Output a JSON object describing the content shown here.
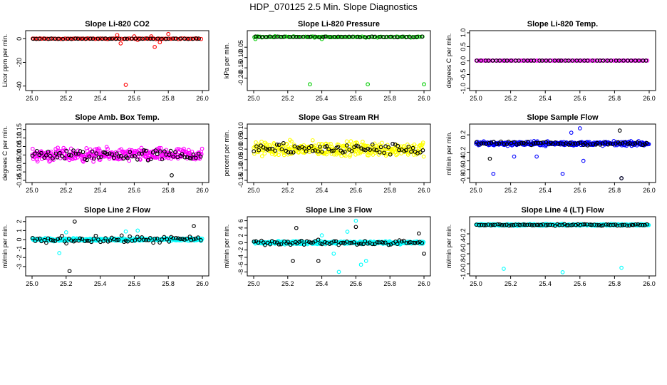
{
  "suptitle": "HDP_070125  2.5 Min. Slope Diagnostics",
  "colors": {
    "red": "#ff0000",
    "green": "#00cc00",
    "magenta": "#ff00ff",
    "yellow": "#ffff00",
    "blue": "#0000ff",
    "cyan": "#00ffff",
    "black": "#000000"
  },
  "chart_data": [
    {
      "type": "scatter",
      "title": "Slope Li-820 CO2",
      "ylabel": "Licor ppm per min.",
      "xlim": [
        25.0,
        26.0
      ],
      "xticks": [
        "25.0",
        "25.2",
        "25.4",
        "25.6",
        "25.8",
        "26.0"
      ],
      "ylim": [
        -42,
        5
      ],
      "yticks": [
        0,
        -20,
        -40
      ],
      "yticklabels": [
        "0",
        "-20",
        "-40"
      ],
      "series": [
        {
          "name": "all",
          "color": "red",
          "base": 0,
          "spread": 0.4,
          "count": 90,
          "outliers": [
            [
              25.55,
              -39
            ],
            [
              25.5,
              3
            ],
            [
              25.52,
              -4
            ],
            [
              25.6,
              2
            ],
            [
              25.7,
              2
            ],
            [
              25.72,
              -7
            ],
            [
              25.75,
              -3
            ],
            [
              25.8,
              4
            ],
            [
              25.62,
              -1
            ]
          ]
        },
        {
          "name": "line",
          "color": "black",
          "base": 0,
          "spread": 0.3,
          "count": 45,
          "outliers": []
        }
      ]
    },
    {
      "type": "scatter",
      "title": "Slope Li-820 Pressure",
      "ylabel": "kPa per min.",
      "xlim": [
        25.0,
        26.0
      ],
      "xticks": [
        "25.0",
        "25.2",
        "25.4",
        "25.6",
        "25.8",
        "26.0"
      ],
      "ylim": [
        -0.25,
        0.02
      ],
      "yticks": [
        -0.05,
        -0.1,
        -0.15,
        -0.2
      ],
      "yticklabels": [
        "-0.05",
        "-0.10",
        "-0.15",
        "-0.20"
      ],
      "series": [
        {
          "name": "all",
          "color": "green",
          "base": 0.0,
          "spread": 0.004,
          "count": 90,
          "outliers": [
            [
              25.33,
              -0.23
            ],
            [
              25.67,
              -0.23
            ],
            [
              26.0,
              -0.23
            ],
            [
              25.01,
              -0.01
            ],
            [
              25.4,
              -0.01
            ]
          ]
        },
        {
          "name": "line",
          "color": "black",
          "base": 0.0,
          "spread": 0.003,
          "count": 45,
          "outliers": []
        }
      ]
    },
    {
      "type": "scatter",
      "title": "Slope Li-820 Temp.",
      "ylabel": "degrees C per min.",
      "xlim": [
        25.0,
        26.0
      ],
      "xticks": [
        "25.0",
        "25.2",
        "25.4",
        "25.6",
        "25.8",
        "26.0"
      ],
      "ylim": [
        -1.0,
        1.0
      ],
      "yticks": [
        1.0,
        0.5,
        0.0,
        -0.5,
        -1.0
      ],
      "yticklabels": [
        "1.0",
        "0.5",
        "0.0",
        "-0.5",
        "-1.0"
      ],
      "series": [
        {
          "name": "all",
          "color": "magenta",
          "base": 0.0,
          "spread": 0.0,
          "count": 90,
          "outliers": []
        },
        {
          "name": "line",
          "color": "black",
          "base": 0.0,
          "spread": 0.0,
          "count": 45,
          "outliers": []
        }
      ]
    },
    {
      "type": "scatter",
      "title": "Slope Amb. Box Temp.",
      "ylabel": "degrees C per min.",
      "xlim": [
        25.0,
        26.0
      ],
      "xticks": [
        "25.0",
        "25.2",
        "25.4",
        "25.6",
        "25.8",
        "26.0"
      ],
      "ylim": [
        -0.15,
        0.17
      ],
      "yticks": [
        0.15,
        0.1,
        0.05,
        0.0,
        -0.05,
        -0.1,
        -0.15
      ],
      "yticklabels": [
        "0.15",
        "0.10",
        "0.05",
        "0.00",
        "-0.05",
        "-0.10",
        "-0.15"
      ],
      "series": [
        {
          "name": "all",
          "color": "magenta",
          "base": 0.0,
          "spread": 0.055,
          "count": 320,
          "outliers": []
        },
        {
          "name": "line",
          "color": "black",
          "base": 0.0,
          "spread": 0.05,
          "count": 75,
          "outliers": [
            [
              25.82,
              -0.12
            ]
          ]
        }
      ]
    },
    {
      "type": "scatter",
      "title": "Slope Gas Stream RH",
      "ylabel": "percent per min.",
      "xlim": [
        25.0,
        26.0
      ],
      "xticks": [
        "25.0",
        "25.2",
        "25.4",
        "25.6",
        "25.8",
        "26.0"
      ],
      "ylim": [
        -0.15,
        0.11
      ],
      "yticks": [
        0.1,
        0.05,
        0.0,
        -0.05,
        -0.1,
        -0.15
      ],
      "yticklabels": [
        "0.10",
        "0.05",
        "0.00",
        "-0.05",
        "-0.10",
        "-0.15"
      ],
      "series": [
        {
          "name": "all",
          "color": "yellow",
          "base": 0.0,
          "spread": 0.05,
          "count": 330,
          "outliers": []
        },
        {
          "name": "line",
          "color": "black",
          "base": 0.0,
          "spread": 0.04,
          "count": 75,
          "outliers": []
        }
      ]
    },
    {
      "type": "scatter",
      "title": "Slope Sample Flow",
      "ylabel": "ml/min per min.",
      "xlim": [
        25.0,
        26.0
      ],
      "xticks": [
        "25.0",
        "25.2",
        "25.4",
        "25.6",
        "25.8",
        "26.0"
      ],
      "ylim": [
        -0.85,
        0.4
      ],
      "yticks": [
        0.2,
        -0.2,
        -0.4,
        -0.6,
        -0.8
      ],
      "yticklabels": [
        "0.2",
        "-0.2",
        "-0.4",
        "-0.6",
        "-0.8"
      ],
      "series": [
        {
          "name": "all",
          "color": "blue",
          "base": 0.0,
          "spread": 0.07,
          "count": 320,
          "outliers": [
            [
              25.1,
              -0.7
            ],
            [
              25.5,
              -0.7
            ],
            [
              25.6,
              0.35
            ],
            [
              25.62,
              -0.4
            ],
            [
              25.35,
              -0.3
            ],
            [
              25.84,
              -0.8
            ],
            [
              25.55,
              0.25
            ],
            [
              25.22,
              -0.3
            ]
          ]
        },
        {
          "name": "line",
          "color": "black",
          "base": 0.0,
          "spread": 0.06,
          "count": 70,
          "outliers": [
            [
              25.08,
              -0.35
            ],
            [
              25.83,
              0.3
            ],
            [
              25.84,
              -0.8
            ]
          ]
        }
      ]
    },
    {
      "type": "scatter",
      "title": "Slope Line 2 Flow",
      "ylabel": "ml/min per min.",
      "xlim": [
        25.0,
        26.0
      ],
      "xticks": [
        "25.0",
        "25.2",
        "25.4",
        "25.6",
        "25.8",
        "26.0"
      ],
      "ylim": [
        -3.8,
        2.3
      ],
      "yticks": [
        2,
        1,
        0,
        -1,
        -2,
        -3
      ],
      "yticklabels": [
        "2",
        "1",
        "0",
        "-1",
        "-2",
        "-3"
      ],
      "series": [
        {
          "name": "all",
          "color": "cyan",
          "base": 0.0,
          "spread": 0.22,
          "count": 340,
          "outliers": [
            [
              25.16,
              -1.5
            ],
            [
              25.62,
              1.0
            ],
            [
              25.2,
              0.8
            ],
            [
              25.55,
              0.9
            ]
          ]
        },
        {
          "name": "line",
          "color": "black",
          "base": 0.0,
          "spread": 0.55,
          "count": 75,
          "outliers": [
            [
              25.22,
              -3.5
            ],
            [
              25.25,
              2.0
            ],
            [
              25.95,
              1.5
            ]
          ]
        }
      ]
    },
    {
      "type": "scatter",
      "title": "Slope Line 3 Flow",
      "ylabel": "ml/min per min.",
      "xlim": [
        25.0,
        26.0
      ],
      "xticks": [
        "25.0",
        "25.2",
        "25.4",
        "25.6",
        "25.8",
        "26.0"
      ],
      "ylim": [
        -8.5,
        6.5
      ],
      "yticks": [
        6,
        4,
        2,
        0,
        -2,
        -4,
        -6,
        -8
      ],
      "yticklabels": [
        "6",
        "4",
        "2",
        "0",
        "-2",
        "-4",
        "-6",
        "-8"
      ],
      "series": [
        {
          "name": "all",
          "color": "cyan",
          "base": 0.0,
          "spread": 0.6,
          "count": 340,
          "outliers": [
            [
              25.5,
              -8
            ],
            [
              25.63,
              -6
            ],
            [
              25.66,
              -5
            ],
            [
              25.6,
              6
            ],
            [
              25.47,
              -3
            ],
            [
              25.4,
              2
            ],
            [
              25.55,
              3
            ]
          ]
        },
        {
          "name": "line",
          "color": "black",
          "base": 0.0,
          "spread": 1.0,
          "count": 75,
          "outliers": [
            [
              25.25,
              4
            ],
            [
              25.23,
              -5
            ],
            [
              25.38,
              -5
            ],
            [
              25.6,
              4.3
            ],
            [
              25.97,
              2.5
            ],
            [
              26.0,
              -3
            ]
          ]
        }
      ]
    },
    {
      "type": "scatter",
      "title": "Slope Line 4 (LT) Flow",
      "ylabel": "ml/min per min.",
      "xlim": [
        25.0,
        26.0
      ],
      "xticks": [
        "25.0",
        "25.2",
        "25.4",
        "25.6",
        "25.8",
        "26.0"
      ],
      "ylim": [
        -1.0,
        0.1
      ],
      "yticks": [
        -0.2,
        -0.4,
        -0.6,
        -0.8,
        -1.0
      ],
      "yticklabels": [
        "-0.2",
        "-0.4",
        "-0.6",
        "-0.8",
        "-1.0"
      ],
      "series": [
        {
          "name": "all",
          "color": "cyan",
          "base": -0.02,
          "spread": 0.025,
          "count": 340,
          "outliers": [
            [
              25.16,
              -0.9
            ],
            [
              25.5,
              -0.97
            ],
            [
              25.84,
              -0.88
            ]
          ]
        },
        {
          "name": "line",
          "color": "black",
          "base": -0.02,
          "spread": 0.02,
          "count": 75,
          "outliers": []
        }
      ]
    }
  ]
}
